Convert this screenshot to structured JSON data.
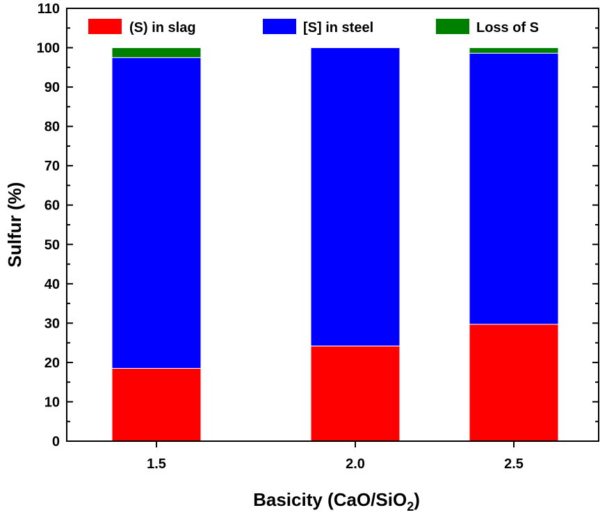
{
  "chart_data": {
    "type": "bar",
    "stacked": true,
    "categories": [
      "1.5",
      "2.0",
      "2.5"
    ],
    "series": [
      {
        "name": "(S) in slag",
        "color": "#ff0000",
        "values": [
          18.5,
          24.2,
          29.7
        ]
      },
      {
        "name": "[S] in steel",
        "color": "#0000ff",
        "values": [
          79.0,
          75.8,
          68.9
        ]
      },
      {
        "name": "Loss of S",
        "color": "#008000",
        "values": [
          2.5,
          0.0,
          1.4
        ]
      }
    ],
    "xlabel": "Basicity (CaO/SiO",
    "xlabel_subscript": "2",
    "xlabel_close": ")",
    "ylabel": "Sulfur (%)",
    "ylim": [
      0,
      110
    ],
    "yticks": [
      "0",
      "10",
      "20",
      "30",
      "40",
      "50",
      "60",
      "70",
      "80",
      "90",
      "100",
      "110"
    ],
    "grid": false,
    "legend_placement": "top"
  }
}
